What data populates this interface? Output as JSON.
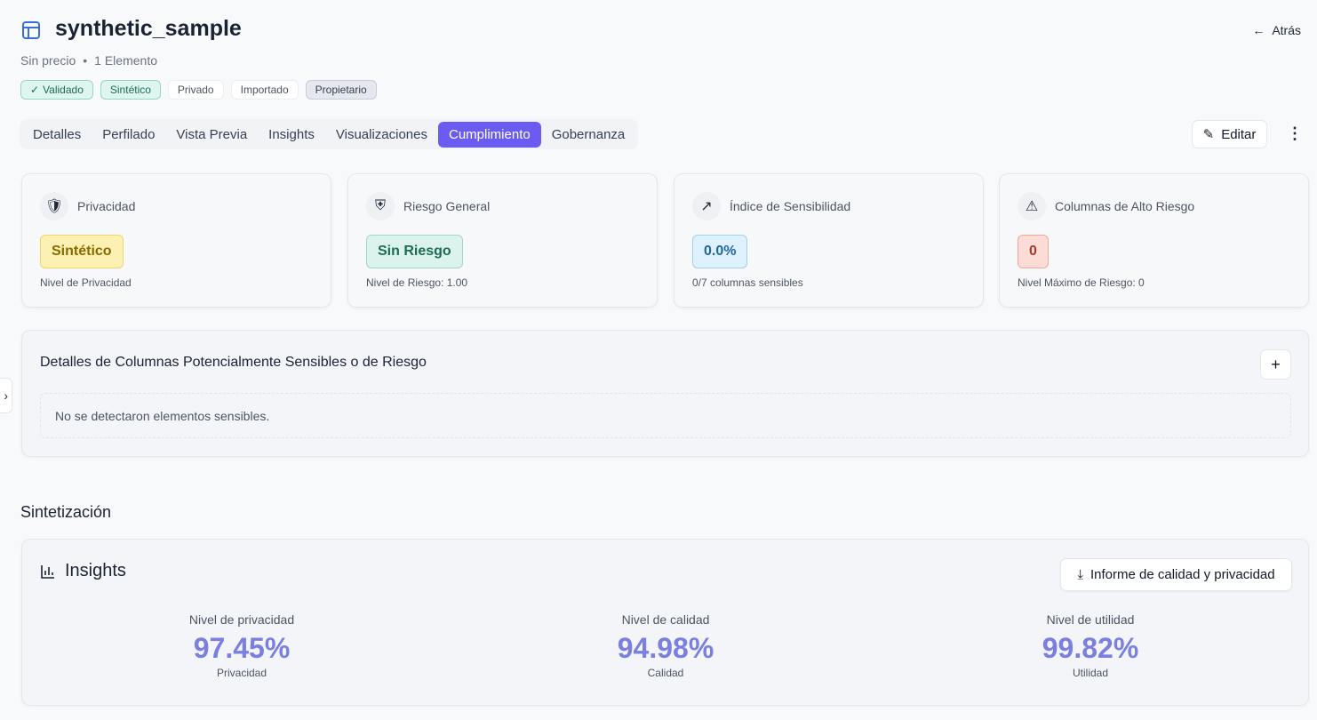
{
  "header": {
    "title": "synthetic_sample",
    "price": "Sin precio",
    "items": "1 Elemento",
    "back": "Atrás"
  },
  "tags": [
    "Validado",
    "Sintético",
    "Privado",
    "Importado",
    "Propietario"
  ],
  "tabs": [
    "Detalles",
    "Perfilado",
    "Vista Previa",
    "Insights",
    "Visualizaciones",
    "Cumplimiento",
    "Gobernanza"
  ],
  "edit": "Editar",
  "cards": [
    {
      "title": "Privacidad",
      "badge": "Sintético",
      "note": "Nivel de Privacidad"
    },
    {
      "title": "Riesgo General",
      "badge": "Sin Riesgo",
      "note": "Nivel de Riesgo: 1.00"
    },
    {
      "title": "Índice de Sensibilidad",
      "badge": "0.0%",
      "note": "0/7 columnas sensibles"
    },
    {
      "title": "Columnas de Alto Riesgo",
      "badge": "0",
      "note": "Nivel Máximo de Riesgo: 0"
    }
  ],
  "details": {
    "title": "Detalles de Columnas Potencialmente Sensibles o de Riesgo",
    "empty": "No se detectaron elementos sensibles."
  },
  "section": "Sintetización",
  "insights": {
    "title": "Insights",
    "button": "Informe de calidad y privacidad",
    "metrics": [
      {
        "label": "Nivel de privacidad",
        "value": "97.45%",
        "caption": "Privacidad"
      },
      {
        "label": "Nivel de calidad",
        "value": "94.98%",
        "caption": "Calidad"
      },
      {
        "label": "Nivel de utilidad",
        "value": "99.82%",
        "caption": "Utilidad"
      }
    ]
  }
}
